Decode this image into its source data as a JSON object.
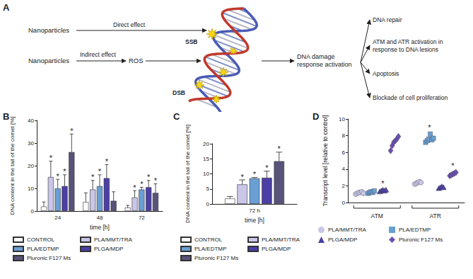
{
  "diagram": {
    "panel_label": "A",
    "sources": [
      {
        "label": "Nanoparticles",
        "effect": "Direct effect"
      },
      {
        "label": "Nanoparticles",
        "effect": "Indirect effect",
        "intermediate": "ROS"
      }
    ],
    "lesions": [
      "SSB",
      "DSB"
    ],
    "response": [
      "DNA damage",
      "response activation"
    ],
    "outcomes": [
      [
        "DNA repair"
      ],
      [
        "ATM and ATR activation in",
        "response to DNA lesions"
      ],
      [
        "Apoptosis"
      ],
      [
        "Blockade of cell proliferation"
      ]
    ]
  },
  "chart_data": [
    {
      "panel_label": "B",
      "type": "bar",
      "categories": [
        "24",
        "48",
        "72"
      ],
      "xlabel": "time [h]",
      "ylabel": "DNA content in the tail of the comet [%]",
      "ylim": [
        0,
        40
      ],
      "yticks": [
        0,
        10,
        20,
        30,
        40
      ],
      "grid": false,
      "legend": "bottom",
      "series": [
        {
          "name": "CONTROL",
          "color": "#ffffff",
          "values": [
            2,
            4,
            1.5
          ],
          "errors": [
            2,
            4,
            1
          ],
          "significance": [
            null,
            null,
            null
          ]
        },
        {
          "name": "PLA/MMT/TRA",
          "color": "#c9c6e8",
          "values": [
            15,
            9.5,
            6
          ],
          "errors": [
            7,
            4,
            3
          ],
          "significance": [
            "*",
            "*",
            "*"
          ]
        },
        {
          "name": "PLA/EDTMP",
          "color": "#6a9fd4",
          "values": [
            10,
            11,
            9.5
          ],
          "errors": [
            4,
            5,
            1
          ],
          "significance": [
            "*",
            "*",
            "*"
          ]
        },
        {
          "name": "PLGA/MDP",
          "color": "#4b3fa6",
          "values": [
            11,
            14.5,
            10.5
          ],
          "errors": [
            5,
            6,
            3
          ],
          "significance": [
            "*",
            "*",
            "*"
          ]
        },
        {
          "name": "Pluronic F127 Ms",
          "color": "#58537a",
          "values": [
            26,
            4.5,
            8
          ],
          "errors": [
            8,
            4,
            4
          ],
          "significance": [
            "*",
            null,
            "*"
          ]
        }
      ]
    },
    {
      "panel_label": "C",
      "type": "bar",
      "categories": [
        "72 h"
      ],
      "xlabel": "time [h]",
      "ylabel": "DNA content in the tail of the comet [%]",
      "ylim": [
        0,
        20
      ],
      "yticks": [
        0,
        5,
        10,
        15,
        20
      ],
      "grid": false,
      "legend": "bottom",
      "series": [
        {
          "name": "CONTROL",
          "color": "#ffffff",
          "values": [
            1.8
          ],
          "errors": [
            0.7
          ],
          "significance": [
            null
          ]
        },
        {
          "name": "PLA/MMT/TRA",
          "color": "#c9c6e8",
          "values": [
            6.5
          ],
          "errors": [
            1.5
          ],
          "significance": [
            "*"
          ]
        },
        {
          "name": "PLA/EDTMP",
          "color": "#6a9fd4",
          "values": [
            8.5
          ],
          "errors": [
            0.3
          ],
          "significance": [
            "*"
          ]
        },
        {
          "name": "PLGA/MDP",
          "color": "#4b3fa6",
          "values": [
            8.7
          ],
          "errors": [
            2.2
          ],
          "significance": [
            "*"
          ]
        },
        {
          "name": "Pluronic F127 Ms",
          "color": "#58537a",
          "values": [
            14.2
          ],
          "errors": [
            3
          ],
          "significance": [
            "*"
          ]
        }
      ]
    },
    {
      "panel_label": "D",
      "type": "scatter",
      "categories": [
        "ATM",
        "ATR"
      ],
      "ylabel": "Transcript level [relative to control]",
      "ylim": [
        0,
        10
      ],
      "yticks": [
        0,
        2,
        4,
        6,
        8,
        10
      ],
      "grid": false,
      "legend": "bottom",
      "series": [
        {
          "name": "PLA/MMT/TRA",
          "color": "#c9c6e8",
          "marker": "circle",
          "values": [
            [
              1.0,
              1.1,
              1.2,
              1.2,
              1.3,
              1.1
            ],
            [
              2.2,
              2.3,
              2.4,
              2.5,
              2.4
            ]
          ],
          "significance": [
            null,
            null
          ]
        },
        {
          "name": "PLA/EDTMP",
          "color": "#6a9fd4",
          "marker": "square",
          "values": [
            [
              1.1,
              1.2,
              1.3,
              1.2,
              1.4
            ],
            [
              7.2,
              7.4,
              7.6,
              8.2,
              7.5,
              7.7
            ]
          ],
          "significance": [
            null,
            "*"
          ]
        },
        {
          "name": "PLGA/MDP",
          "color": "#4b3fa6",
          "marker": "triangle",
          "values": [
            [
              1.3,
              1.4,
              1.5,
              1.4,
              1.5
            ],
            [
              1.7,
              1.8,
              1.9,
              1.8
            ]
          ],
          "significance": [
            "*",
            null
          ]
        },
        {
          "name": "Pluronic F127 Ms",
          "color": "#6a4fb0",
          "marker": "diamond",
          "values": [
            [
              6.2,
              6.8,
              7.2,
              7.4,
              7.6,
              7.9
            ],
            [
              3.2,
              3.3,
              3.4,
              3.5,
              3.6
            ]
          ],
          "significance": [
            null,
            "*"
          ]
        }
      ]
    }
  ]
}
